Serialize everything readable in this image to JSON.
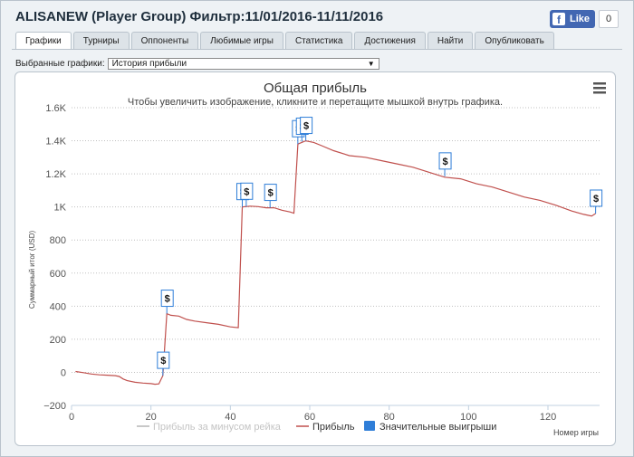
{
  "window": {
    "title": "ALISANEW (Player Group) Фильтр:11/01/2016-11/11/2016"
  },
  "facebook": {
    "like_label": "Like",
    "like_count": "0"
  },
  "tabs": [
    {
      "label": "Графики",
      "active": true
    },
    {
      "label": "Турниры",
      "active": false
    },
    {
      "label": "Оппоненты",
      "active": false
    },
    {
      "label": "Любимые игры",
      "active": false
    },
    {
      "label": "Статистика",
      "active": false
    },
    {
      "label": "Достижения",
      "active": false
    },
    {
      "label": "Найти",
      "active": false
    },
    {
      "label": "Опубликовать",
      "active": false
    }
  ],
  "graph_select": {
    "label": "Выбранные графики:",
    "value": "История прибыли"
  },
  "colors": {
    "profit_line": "#c0504d",
    "rake_line": "#c8c8c8",
    "big_wins_marker": "#2f7ed8",
    "grid": "#c0c0c0"
  },
  "chart_data": {
    "type": "line",
    "title": "Общая прибыль",
    "subtitle": "Чтобы увеличить изображение, кликните и перетащите мышкой внутрь графика.",
    "ylabel": "Суммарный итог (USD)",
    "xlabel": "Номер игры",
    "menu_icon": "hamburger-menu-icon",
    "xlim": [
      0,
      133
    ],
    "ylim": [
      -200,
      1600
    ],
    "x_ticks": [
      0,
      20,
      40,
      60,
      80,
      100,
      120
    ],
    "y_ticks": [
      -200,
      0,
      200,
      400,
      600,
      800,
      1000,
      1200,
      1400,
      1600
    ],
    "y_tick_labels": [
      "−200",
      "0",
      "200",
      "400",
      "600",
      "800",
      "1K",
      "1.2K",
      "1.4K",
      "1.6K"
    ],
    "grid": "horizontal dotted",
    "legend_position": "bottom",
    "legend": [
      {
        "label": "Прибыль за минусом рейка",
        "enabled": false
      },
      {
        "label": "Прибыль",
        "enabled": true
      },
      {
        "label": "Значительные выигрыши",
        "enabled": true
      }
    ],
    "series": [
      {
        "name": "Прибыль",
        "points": [
          [
            1,
            5
          ],
          [
            3,
            -2
          ],
          [
            5,
            -10
          ],
          [
            7,
            -15
          ],
          [
            9,
            -17
          ],
          [
            11,
            -20
          ],
          [
            12,
            -25
          ],
          [
            13,
            -40
          ],
          [
            14,
            -50
          ],
          [
            16,
            -60
          ],
          [
            18,
            -65
          ],
          [
            20,
            -68
          ],
          [
            21,
            -72
          ],
          [
            22,
            -70
          ],
          [
            23,
            -20
          ],
          [
            24,
            355
          ],
          [
            25,
            345
          ],
          [
            27,
            340
          ],
          [
            29,
            320
          ],
          [
            31,
            310
          ],
          [
            34,
            300
          ],
          [
            37,
            290
          ],
          [
            40,
            275
          ],
          [
            42,
            270
          ],
          [
            43,
            1000
          ],
          [
            45,
            1005
          ],
          [
            47,
            1002
          ],
          [
            49,
            995
          ],
          [
            51,
            995
          ],
          [
            53,
            980
          ],
          [
            55,
            970
          ],
          [
            56,
            962
          ],
          [
            57,
            1380
          ],
          [
            59,
            1400
          ],
          [
            61,
            1390
          ],
          [
            63,
            1370
          ],
          [
            66,
            1340
          ],
          [
            70,
            1310
          ],
          [
            74,
            1300
          ],
          [
            78,
            1280
          ],
          [
            82,
            1260
          ],
          [
            86,
            1240
          ],
          [
            90,
            1210
          ],
          [
            94,
            1180
          ],
          [
            98,
            1170
          ],
          [
            102,
            1140
          ],
          [
            106,
            1120
          ],
          [
            110,
            1090
          ],
          [
            114,
            1060
          ],
          [
            118,
            1040
          ],
          [
            122,
            1010
          ],
          [
            126,
            975
          ],
          [
            129,
            955
          ],
          [
            131,
            945
          ],
          [
            132,
            960
          ]
        ]
      }
    ],
    "big_wins": [
      {
        "x": 23,
        "y": -20,
        "label": "$"
      },
      {
        "x": 24,
        "y": 355,
        "label": "$"
      },
      {
        "x": 43,
        "y": 1000,
        "label": "$"
      },
      {
        "x": 44,
        "y": 1002,
        "label": "$"
      },
      {
        "x": 50,
        "y": 995,
        "label": "$"
      },
      {
        "x": 57,
        "y": 1380,
        "label": "$"
      },
      {
        "x": 58,
        "y": 1395,
        "label": "$"
      },
      {
        "x": 59,
        "y": 1400,
        "label": "$"
      },
      {
        "x": 94,
        "y": 1185,
        "label": "$"
      },
      {
        "x": 132,
        "y": 960,
        "label": "$"
      }
    ]
  }
}
